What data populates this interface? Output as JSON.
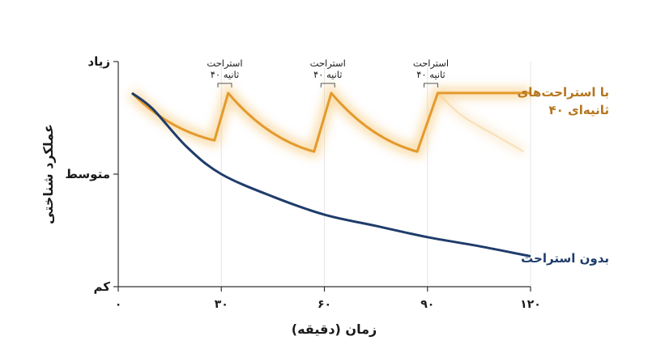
{
  "chart_data": {
    "type": "line",
    "ylabel": "عملکرد شناختی",
    "xlabel": "زمان (دقیقه)",
    "x_ticks": [
      "۰",
      "۳۰",
      "۶۰",
      "۹۰",
      "۱۲۰"
    ],
    "x_tick_values": [
      0,
      30,
      60,
      90,
      120
    ],
    "y_level_labels": [
      "زیاد",
      "متوسط",
      "کم"
    ],
    "y_level_values": [
      1,
      0.5,
      0
    ],
    "xlim": [
      0,
      120
    ],
    "ylim": [
      0,
      1
    ],
    "grid": true,
    "series": [
      {
        "name": "با استراحت‌های ۴۰ ثانیه‌ای",
        "name_lines": [
          "با استراحت‌های",
          "۴۰ ثانیه‌ای"
        ],
        "color": "#e39a2d",
        "points": [
          [
            4,
            0.86
          ],
          [
            28,
            0.65
          ],
          [
            32,
            0.86
          ],
          [
            57,
            0.6
          ],
          [
            62,
            0.86
          ],
          [
            87,
            0.6
          ],
          [
            93,
            0.86
          ],
          [
            120,
            0.86
          ]
        ]
      },
      {
        "name": "بدون استراحت",
        "name_lines": [
          "بدون استراحت"
        ],
        "color": "#1f3c6b",
        "points": [
          [
            4,
            0.86
          ],
          [
            10,
            0.79
          ],
          [
            20,
            0.62
          ],
          [
            30,
            0.5
          ],
          [
            45,
            0.4
          ],
          [
            60,
            0.32
          ],
          [
            75,
            0.27
          ],
          [
            90,
            0.22
          ],
          [
            105,
            0.18
          ],
          [
            120,
            0.135
          ]
        ]
      }
    ],
    "faded_projection": {
      "color": "#f3c77e",
      "points": [
        [
          93,
          0.86
        ],
        [
          100,
          0.76
        ],
        [
          110,
          0.67
        ],
        [
          118,
          0.6
        ]
      ]
    },
    "annotations": [
      {
        "line1": "استراحت",
        "line2": "۴۰ ثانیه",
        "x_start": 29,
        "x_end": 33
      },
      {
        "line1": "استراحت",
        "line2": "۴۰ ثانیه",
        "x_start": 59,
        "x_end": 63
      },
      {
        "line1": "استراحت",
        "line2": "۴۰ ثانیه",
        "x_start": 89,
        "x_end": 93
      }
    ],
    "colors": {
      "axis": "#333333",
      "grid": "#e6e6e6",
      "with_breaks_label": "#b4761e",
      "no_breaks_label": "#1f3c6b"
    }
  }
}
